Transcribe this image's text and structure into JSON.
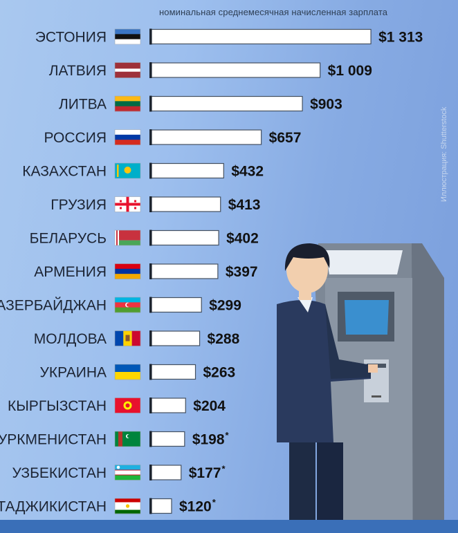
{
  "header": "номинальная среднемесячная начисленная зарплата",
  "credit": "Иллюстрация: Shutterstock",
  "chart_data": {
    "type": "bar",
    "orientation": "horizontal",
    "title": "номинальная среднемесячная начисленная зарплата",
    "categories": [
      "ЭСТОНИЯ",
      "ЛАТВИЯ",
      "ЛИТВА",
      "РОССИЯ",
      "КАЗАХСТАН",
      "ГРУЗИЯ",
      "БЕЛАРУСЬ",
      "АРМЕНИЯ",
      "АЗЕРБАЙДЖАН",
      "МОЛДОВА",
      "УКРАИНА",
      "КЫРГЫЗСТАН",
      "ТУРКМЕНИСТАН",
      "УЗБЕКИСТАН",
      "ТАДЖИКИСТАН"
    ],
    "values": [
      1313,
      1009,
      903,
      657,
      432,
      413,
      402,
      397,
      299,
      288,
      263,
      204,
      198,
      177,
      120
    ],
    "value_labels": [
      "$1 313",
      "$1 009",
      "$903",
      "$657",
      "$432",
      "$413",
      "$402",
      "$397",
      "$299",
      "$288",
      "$263",
      "$204",
      "$198",
      "$177",
      "$120"
    ],
    "asterisk": [
      false,
      false,
      false,
      false,
      false,
      false,
      false,
      false,
      false,
      false,
      false,
      false,
      true,
      true,
      true
    ],
    "flags": [
      "estonia-flag",
      "latvia-flag",
      "lithuania-flag",
      "russia-flag",
      "kazakhstan-flag",
      "georgia-flag",
      "belarus-flag",
      "armenia-flag",
      "azerbaijan-flag",
      "moldova-flag",
      "ukraine-flag",
      "kyrgyzstan-flag",
      "turkmenistan-flag",
      "uzbekistan-flag",
      "tajikistan-flag"
    ],
    "asterisk_mark": "*",
    "grid": false,
    "legend": "none"
  },
  "colors": {
    "bar_fill": "#ffffff",
    "bar_border": "#27303d",
    "label": "#1c2433",
    "value": "#111111"
  }
}
